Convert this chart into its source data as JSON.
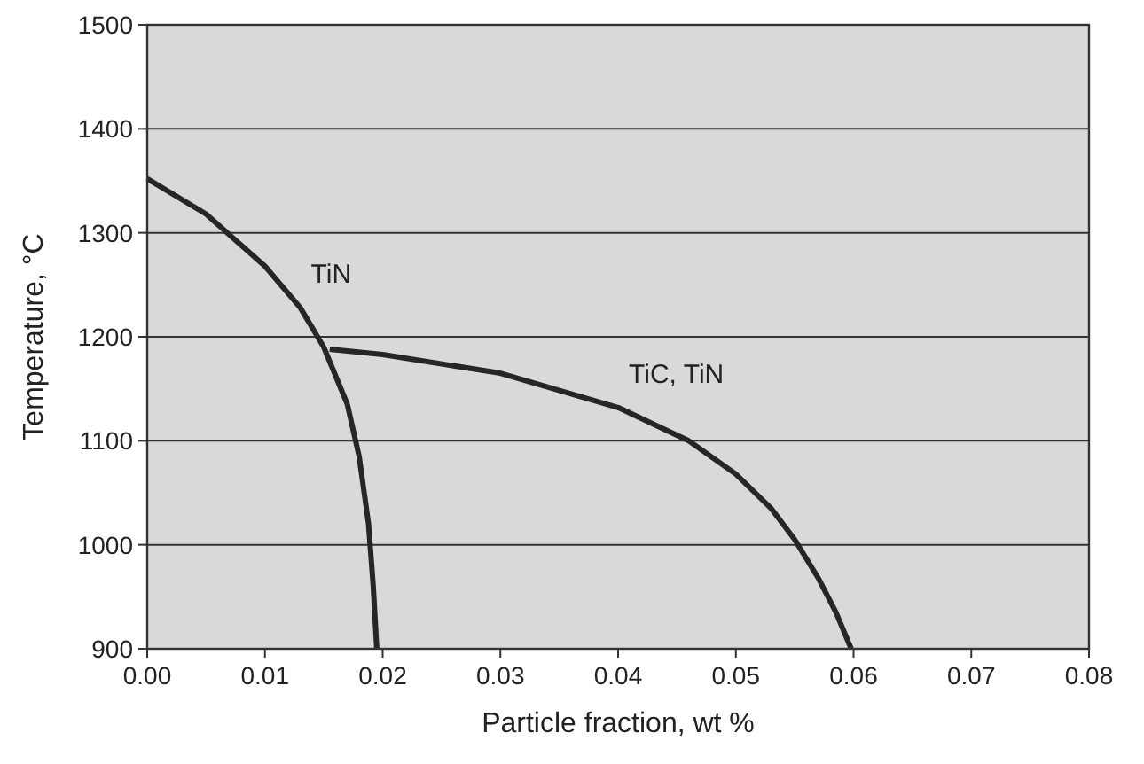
{
  "chart_data": {
    "type": "line",
    "xlabel": "Particle fraction, wt %",
    "ylabel": "Temperature, °C",
    "xlim": [
      0,
      0.08
    ],
    "xticks": [
      {
        "value": 0,
        "label": "0.00"
      },
      {
        "value": 0.01,
        "label": "0.01"
      },
      {
        "value": 0.02,
        "label": "0.02"
      },
      {
        "value": 0.03,
        "label": "0.03"
      },
      {
        "value": 0.04,
        "label": "0.04"
      },
      {
        "value": 0.05,
        "label": "0.05"
      },
      {
        "value": 0.06,
        "label": "0.06"
      },
      {
        "value": 0.07,
        "label": "0.07"
      },
      {
        "value": 0.08,
        "label": "0.08"
      }
    ],
    "ylim": [
      900,
      1500
    ],
    "yticks": [
      900,
      1000,
      1100,
      1200,
      1300,
      1400,
      1500
    ],
    "grid": "y",
    "marker": "none",
    "line_style": "solid",
    "series": [
      {
        "name": "TiN",
        "color": "#262626",
        "x": [
          0,
          0.005,
          0.01,
          0.013,
          0.015,
          0.017,
          0.018,
          0.0188,
          0.0192,
          0.0194,
          0.0195
        ],
        "values": [
          1352,
          1318,
          1268,
          1228,
          1190,
          1135,
          1085,
          1020,
          960,
          920,
          900
        ]
      },
      {
        "name": "TiC, TiN",
        "color": "#262626",
        "x": [
          0.0155,
          0.02,
          0.03,
          0.04,
          0.046,
          0.05,
          0.053,
          0.055,
          0.057,
          0.0585,
          0.0598
        ],
        "values": [
          1188,
          1183,
          1165,
          1132,
          1100,
          1068,
          1035,
          1005,
          968,
          935,
          900
        ]
      }
    ]
  }
}
